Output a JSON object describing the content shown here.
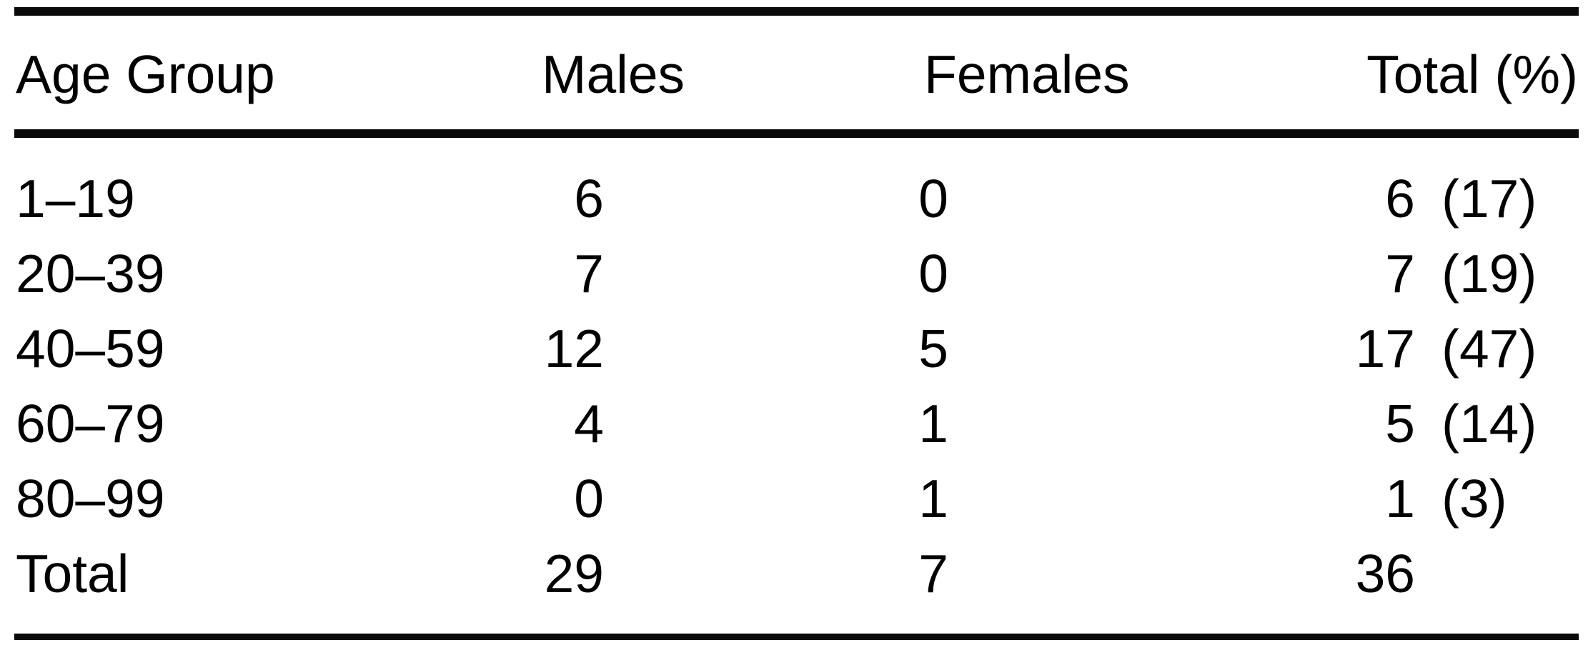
{
  "table": {
    "header": {
      "age_group": "Age Group",
      "males": "Males",
      "females": "Females",
      "total": "Total (%)"
    },
    "rows": [
      {
        "age_group": "1–19",
        "males": "6",
        "females": "0",
        "total_count": "6",
        "total_pct": "(17)"
      },
      {
        "age_group": "20–39",
        "males": "7",
        "females": "0",
        "total_count": "7",
        "total_pct": "(19)"
      },
      {
        "age_group": "40–59",
        "males": "12",
        "females": "5",
        "total_count": "17",
        "total_pct": "(47)"
      },
      {
        "age_group": "60–79",
        "males": "4",
        "females": "1",
        "total_count": "5",
        "total_pct": "(14)"
      },
      {
        "age_group": "80–99",
        "males": "0",
        "females": "1",
        "total_count": "1",
        "total_pct": "(3)"
      },
      {
        "age_group": "Total",
        "males": "29",
        "females": "7",
        "total_count": "36",
        "total_pct": ""
      }
    ]
  },
  "chart_data": {
    "type": "table",
    "title": "",
    "columns": [
      "Age Group",
      "Males",
      "Females",
      "Total (%)"
    ],
    "rows": [
      [
        "1–19",
        6,
        0,
        "6 (17)"
      ],
      [
        "20–39",
        7,
        0,
        "7 (19)"
      ],
      [
        "40–59",
        12,
        5,
        "17 (47)"
      ],
      [
        "60–79",
        4,
        1,
        "5 (14)"
      ],
      [
        "80–99",
        0,
        1,
        "1 (3)"
      ],
      [
        "Total",
        29,
        7,
        "36"
      ]
    ],
    "notes": {
      "total_column_format": "count (percent)",
      "totals_row": {
        "males": 29,
        "females": 7,
        "total": 36
      }
    }
  }
}
